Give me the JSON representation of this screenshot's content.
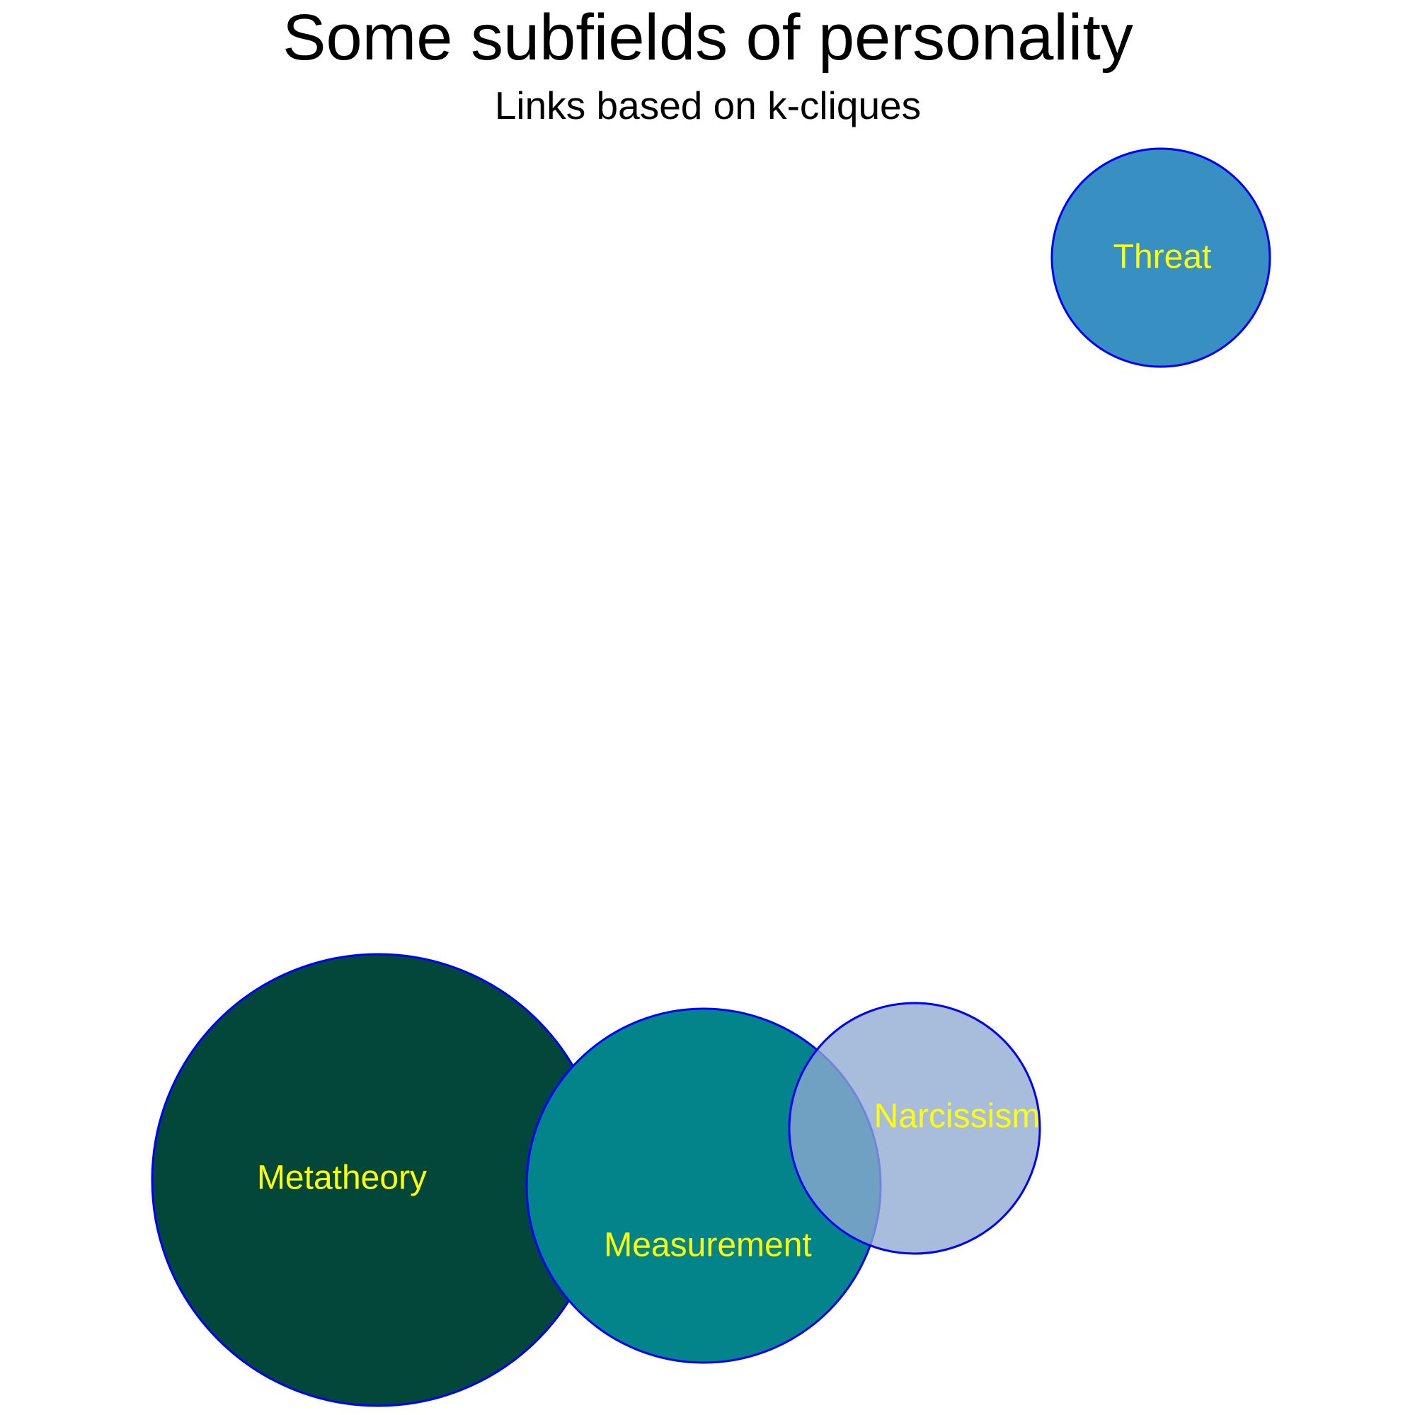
{
  "title": "Some subfields of personality",
  "subtitle": "Links based on k-cliques",
  "style": {
    "outline_color": "#0000ff",
    "label_color": "#ffff00"
  },
  "nodes": [
    {
      "id": "metatheory",
      "label": "Metatheory",
      "fill": "#03463a",
      "opacity": 1.0
    },
    {
      "id": "measurement",
      "label": "Measurement",
      "fill": "#03838a",
      "opacity": 1.0
    },
    {
      "id": "narcissism",
      "label": "Narcissism",
      "fill": "#8fa9d2",
      "opacity": 0.78
    },
    {
      "id": "threat",
      "label": "Threat",
      "fill": "#3890c2",
      "opacity": 1.0
    }
  ]
}
